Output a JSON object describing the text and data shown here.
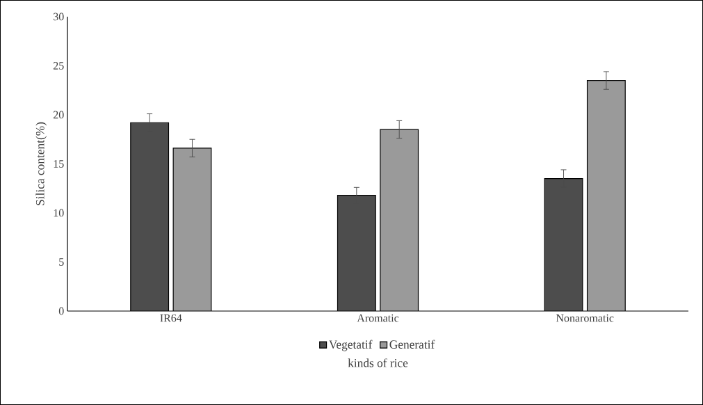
{
  "chart_data": {
    "type": "bar",
    "xlabel": "kinds of rice",
    "ylabel": "Silica content(%)",
    "categories": [
      "IR64",
      "Aromatic",
      "Nonaromatic"
    ],
    "series": [
      {
        "name": "Vegetatif",
        "color": "#4d4d4d",
        "values": [
          19.2,
          11.8,
          13.5
        ],
        "errors": [
          0.9,
          0.8,
          0.9
        ]
      },
      {
        "name": "Generatif",
        "color": "#9a9a9a",
        "values": [
          16.6,
          18.5,
          23.5
        ],
        "errors": [
          0.9,
          0.9,
          0.9
        ]
      }
    ],
    "ylim": [
      0,
      30
    ],
    "yticks": [
      0,
      5,
      10,
      15,
      20,
      25,
      30
    ],
    "grid": false,
    "legend": "bottom"
  }
}
